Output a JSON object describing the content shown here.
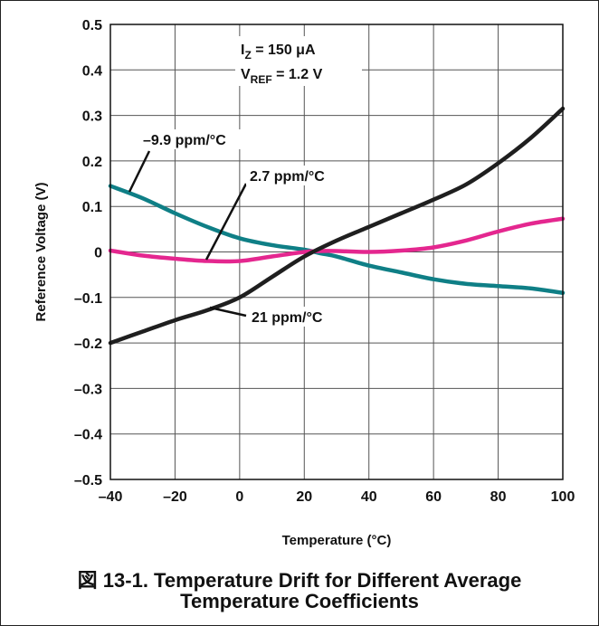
{
  "chart_data": {
    "type": "line",
    "xlabel": "Temperature (°C)",
    "ylabel": "Reference Voltage (V)",
    "xlim": [
      -40,
      100
    ],
    "ylim": [
      -0.5,
      0.5
    ],
    "x_ticks": [
      -40,
      -20,
      0,
      20,
      40,
      60,
      80,
      100
    ],
    "x_tick_labels": [
      "–40",
      "–20",
      "0",
      "20",
      "40",
      "60",
      "80",
      "100"
    ],
    "y_ticks": [
      0.5,
      0.4,
      0.3,
      0.2,
      0.1,
      0,
      -0.1,
      -0.2,
      -0.3,
      -0.4,
      -0.5
    ],
    "y_tick_labels": [
      "0.5",
      "0.4",
      "0.3",
      "0.2",
      "0.1",
      "0",
      "–0.1",
      "–0.2",
      "–0.3",
      "–0.4",
      "–0.5"
    ],
    "grid": true,
    "conditions": {
      "line1": {
        "sym": "I",
        "sub": "Z",
        "rest": " = 150 μA"
      },
      "line2": {
        "sym": "V",
        "sub": "REF",
        "rest": " = 1.2 V"
      }
    },
    "series": [
      {
        "name": "–9.9 ppm/°C",
        "color": "#0f7f86",
        "x": [
          -40,
          -30,
          -20,
          -10,
          0,
          10,
          20,
          25,
          30,
          40,
          50,
          60,
          70,
          80,
          90,
          100
        ],
        "y": [
          0.145,
          0.118,
          0.085,
          0.055,
          0.03,
          0.015,
          0.005,
          -0.003,
          -0.01,
          -0.03,
          -0.045,
          -0.06,
          -0.07,
          -0.075,
          -0.08,
          -0.09
        ]
      },
      {
        "name": "2.7 ppm/°C",
        "color": "#e4278f",
        "x": [
          -40,
          -30,
          -20,
          -10,
          0,
          10,
          20,
          25,
          30,
          40,
          50,
          60,
          70,
          80,
          90,
          100
        ],
        "y": [
          0.003,
          -0.008,
          -0.015,
          -0.02,
          -0.02,
          -0.01,
          0.0,
          0.002,
          0.002,
          0.0,
          0.003,
          0.01,
          0.025,
          0.045,
          0.062,
          0.073
        ]
      },
      {
        "name": "21 ppm/°C",
        "color": "#1f1f1f",
        "x": [
          -40,
          -30,
          -20,
          -10,
          0,
          10,
          20,
          30,
          40,
          50,
          60,
          70,
          80,
          90,
          100
        ],
        "y": [
          -0.2,
          -0.175,
          -0.15,
          -0.128,
          -0.1,
          -0.055,
          -0.01,
          0.025,
          0.055,
          0.085,
          0.115,
          0.148,
          0.195,
          0.25,
          0.315
        ]
      }
    ]
  },
  "caption": {
    "line1": "図 13-1. Temperature Drift for Different Average",
    "line2": "Temperature Coefficients"
  }
}
